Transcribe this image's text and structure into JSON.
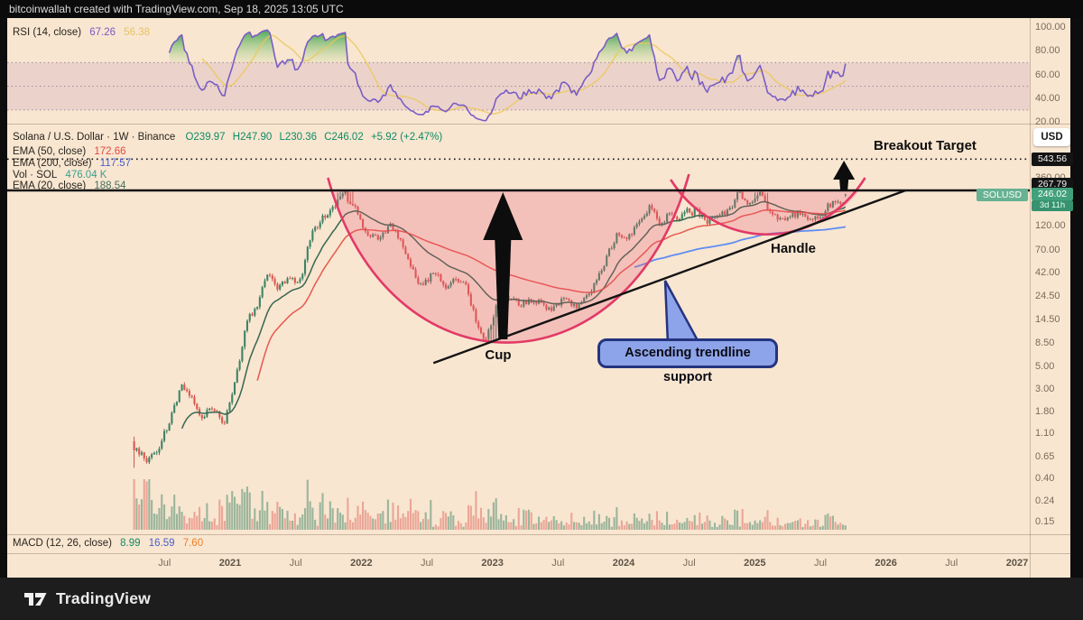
{
  "attribution": "bitcoinwallah created with TradingView.com, Sep 18, 2025 13:05 UTC",
  "brand": {
    "name": "TradingView"
  },
  "annotations": {
    "breakout_target": "Breakout Target",
    "cup": "Cup",
    "handle": "Handle",
    "trendline_callout": "Ascending trendline support"
  },
  "rsi": {
    "label": "RSI (14, close)",
    "value": "67.26",
    "signal_value": "56.38",
    "axis": [
      {
        "v": 100,
        "text": "100.00"
      },
      {
        "v": 80,
        "text": "80.00"
      },
      {
        "v": 60,
        "text": "60.00"
      },
      {
        "v": 40,
        "text": "40.00"
      },
      {
        "v": 20,
        "text": "20.00"
      }
    ]
  },
  "symbol": {
    "title": "Solana / U.S. Dollar · 1W · Binance",
    "o": "O239.97",
    "h": "H247.90",
    "l": "L230.36",
    "c": "C246.02",
    "change": "+5.92 (+2.47%)"
  },
  "overlays": {
    "ema50_label": "EMA (50, close)",
    "ema50_value": "172.66",
    "ema200_label": "EMA (200, close)",
    "ema200_value": "117.57",
    "vol_label": "Vol · SOL",
    "vol_value": "476.04 K",
    "ema20_label": "EMA (20, close)",
    "ema20_value": "188.54"
  },
  "macd": {
    "label": "MACD (12, 26, close)",
    "v1": "8.99",
    "v2": "16.59",
    "v3": "7.60"
  },
  "price_scale": {
    "currency_button": "USD",
    "breakout_badge": "543.56",
    "resistance_badge": "267.79",
    "last_price_badge": "246.02",
    "countdown_badge": "3d 11h",
    "symbol_tag": "SOLUSD",
    "ticks": [
      {
        "p": 360,
        "text": "360.00"
      },
      {
        "p": 120,
        "text": "120.00"
      },
      {
        "p": 70,
        "text": "70.00"
      },
      {
        "p": 42,
        "text": "42.00"
      },
      {
        "p": 24.5,
        "text": "24.50"
      },
      {
        "p": 14.5,
        "text": "14.50"
      },
      {
        "p": 8.5,
        "text": "8.50"
      },
      {
        "p": 5,
        "text": "5.00"
      },
      {
        "p": 3,
        "text": "3.00"
      },
      {
        "p": 1.8,
        "text": "1.80"
      },
      {
        "p": 1.1,
        "text": "1.10"
      },
      {
        "p": 0.65,
        "text": "0.65"
      },
      {
        "p": 0.4,
        "text": "0.40"
      },
      {
        "p": 0.24,
        "text": "0.24"
      },
      {
        "p": 0.15,
        "text": "0.15"
      }
    ]
  },
  "time_scale": {
    "labels": [
      {
        "t": 2020.5,
        "text": "Jul"
      },
      {
        "t": 2021,
        "text": "2021",
        "bold": true
      },
      {
        "t": 2021.5,
        "text": "Jul"
      },
      {
        "t": 2022,
        "text": "2022",
        "bold": true
      },
      {
        "t": 2022.5,
        "text": "Jul"
      },
      {
        "t": 2023,
        "text": "2023",
        "bold": true
      },
      {
        "t": 2023.5,
        "text": "Jul"
      },
      {
        "t": 2024,
        "text": "2024",
        "bold": true
      },
      {
        "t": 2024.5,
        "text": "Jul"
      },
      {
        "t": 2025,
        "text": "2025",
        "bold": true
      },
      {
        "t": 2025.5,
        "text": "Jul"
      },
      {
        "t": 2026,
        "text": "2026",
        "bold": true
      },
      {
        "t": 2026.5,
        "text": "Jul"
      },
      {
        "t": 2027,
        "text": "2027",
        "bold": true
      }
    ]
  },
  "chart_data": {
    "type": "candlestick",
    "symbol": "SOLUSD",
    "title": "Solana / U.S. Dollar",
    "interval": "1W",
    "exchange": "Binance",
    "scale": "log",
    "last": {
      "open": 239.97,
      "high": 247.9,
      "low": 230.36,
      "close": 246.02,
      "change": 5.92,
      "change_pct": 2.47
    },
    "price_levels": {
      "resistance": 267.79,
      "breakout_target": 543.56
    },
    "indicators": {
      "rsi14": 67.26,
      "rsi_signal": 56.38,
      "ema20": 188.54,
      "ema50": 172.66,
      "ema200": 117.57,
      "volume_sol": "476.04 K",
      "macd": 8.99,
      "macd_signal": 16.59,
      "macd_hist": 7.6
    },
    "monthly_closes": [
      [
        "2020-04",
        0.78
      ],
      [
        "2020-05",
        0.6
      ],
      [
        "2020-06",
        0.72
      ],
      [
        "2020-07",
        1.5
      ],
      [
        "2020-08",
        3.2
      ],
      [
        "2020-09",
        2.5
      ],
      [
        "2020-10",
        1.55
      ],
      [
        "2020-11",
        2.1
      ],
      [
        "2020-12",
        1.52
      ],
      [
        "2021-01",
        3.8
      ],
      [
        "2021-02",
        13.0
      ],
      [
        "2021-03",
        19.0
      ],
      [
        "2021-04",
        44.0
      ],
      [
        "2021-05",
        30.0
      ],
      [
        "2021-06",
        34.0
      ],
      [
        "2021-07",
        35.0
      ],
      [
        "2021-08",
        105
      ],
      [
        "2021-09",
        145
      ],
      [
        "2021-10",
        200
      ],
      [
        "2021-11",
        230
      ],
      [
        "2021-12",
        172
      ],
      [
        "2022-01",
        97
      ],
      [
        "2022-02",
        88
      ],
      [
        "2022-03",
        122
      ],
      [
        "2022-04",
        90
      ],
      [
        "2022-05",
        46
      ],
      [
        "2022-06",
        34
      ],
      [
        "2022-07",
        41
      ],
      [
        "2022-08",
        31.5
      ],
      [
        "2022-09",
        33
      ],
      [
        "2022-10",
        31
      ],
      [
        "2022-11",
        14
      ],
      [
        "2022-12",
        9.6
      ],
      [
        "2023-01",
        23
      ],
      [
        "2023-02",
        22
      ],
      [
        "2023-03",
        20.5
      ],
      [
        "2023-04",
        22
      ],
      [
        "2023-05",
        20.5
      ],
      [
        "2023-06",
        16.5
      ],
      [
        "2023-07",
        24.5
      ],
      [
        "2023-08",
        20.5
      ],
      [
        "2023-09",
        21.5
      ],
      [
        "2023-10",
        38
      ],
      [
        "2023-11",
        59
      ],
      [
        "2023-12",
        101
      ],
      [
        "2024-01",
        98
      ],
      [
        "2024-02",
        128
      ],
      [
        "2024-03",
        195
      ],
      [
        "2024-04",
        132
      ],
      [
        "2024-05",
        164
      ],
      [
        "2024-06",
        146
      ],
      [
        "2024-07",
        172
      ],
      [
        "2024-08",
        136
      ],
      [
        "2024-09",
        152
      ],
      [
        "2024-10",
        168
      ],
      [
        "2024-11",
        238
      ],
      [
        "2024-12",
        189
      ],
      [
        "2025-01",
        232
      ],
      [
        "2025-02",
        148
      ],
      [
        "2025-03",
        126
      ],
      [
        "2025-04",
        148
      ],
      [
        "2025-05",
        168
      ],
      [
        "2025-06",
        152
      ],
      [
        "2025-07",
        182
      ],
      [
        "2025-08",
        204
      ],
      [
        "2025-09",
        246.02
      ]
    ],
    "pattern": {
      "name": "Cup and Handle",
      "cup": {
        "left_rim_t": 2021.78,
        "bottom_t": 2023.08,
        "right_rim_t": 2024.45,
        "rim_price": 267.79,
        "bottom_price": 8.8
      },
      "handle": {
        "left_rim_t": 2024.4,
        "bottom_t": 2025.25,
        "right_rim_t": 2025.8,
        "rim_price": 267.79,
        "bottom_price": 100
      },
      "trendline_support": {
        "from_t": 2022.55,
        "from_price": 5.4,
        "to_t": 2026.15,
        "to_price": 267.79
      },
      "cup_arrow_t": 2023.08,
      "breakout_arrow_t": 2025.68
    },
    "colors": {
      "up": "#3d8465",
      "down": "#de574d",
      "ema20": "#37664f",
      "ema50": "#e5483f",
      "ema200": "#5f8df2",
      "pattern_stroke": "#e23a66",
      "pattern_fill": "rgba(233,90,120,0.26)",
      "rsi_line": "#7a5cc5",
      "rsi_signal": "#ecc757",
      "background": "#f8e6d1"
    }
  }
}
